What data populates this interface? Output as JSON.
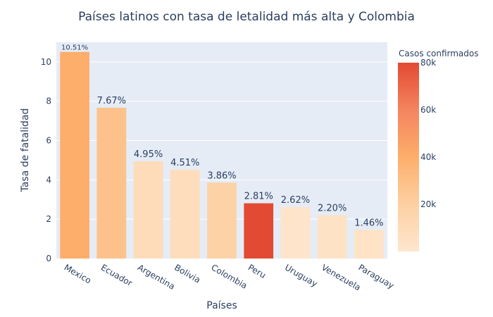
{
  "chart_data": {
    "type": "bar",
    "title": "Países latinos con tasa de letalidad más alta y Colombia",
    "xlabel": "Países",
    "ylabel": "Tasa de fatalidad",
    "ylim": [
      0,
      11
    ],
    "yticks": [
      0,
      2,
      4,
      6,
      8,
      10
    ],
    "grid": true,
    "categories": [
      "Mexico",
      "Ecuador",
      "Argentina",
      "Bolivia",
      "Colombia",
      "Peru",
      "Uruguay",
      "Venezuela",
      "Paraguay"
    ],
    "values": [
      10.51,
      7.67,
      4.95,
      4.51,
      3.86,
      2.81,
      2.62,
      2.2,
      1.46
    ],
    "value_labels": [
      "10.51%",
      "7.67%",
      "4.95%",
      "4.51%",
      "3.86%",
      "2.81%",
      "2.62%",
      "2.20%",
      "1.46%"
    ],
    "color_values": [
      40000,
      28000,
      9000,
      8000,
      18000,
      80000,
      2000,
      4000,
      3000
    ],
    "colorbar": {
      "title": "Casos confirmados",
      "min": 0,
      "max": 80000,
      "ticks": [
        20000,
        40000,
        60000,
        80000
      ],
      "tick_labels": [
        "20k",
        "40k",
        "60k",
        "80k"
      ],
      "colors": [
        "#fee6ce",
        "#fdd0a2",
        "#fdae6b",
        "#f4845f",
        "#e34a33"
      ]
    },
    "background_color": "#e5ecf6",
    "text_color": "#2a3f5f"
  }
}
